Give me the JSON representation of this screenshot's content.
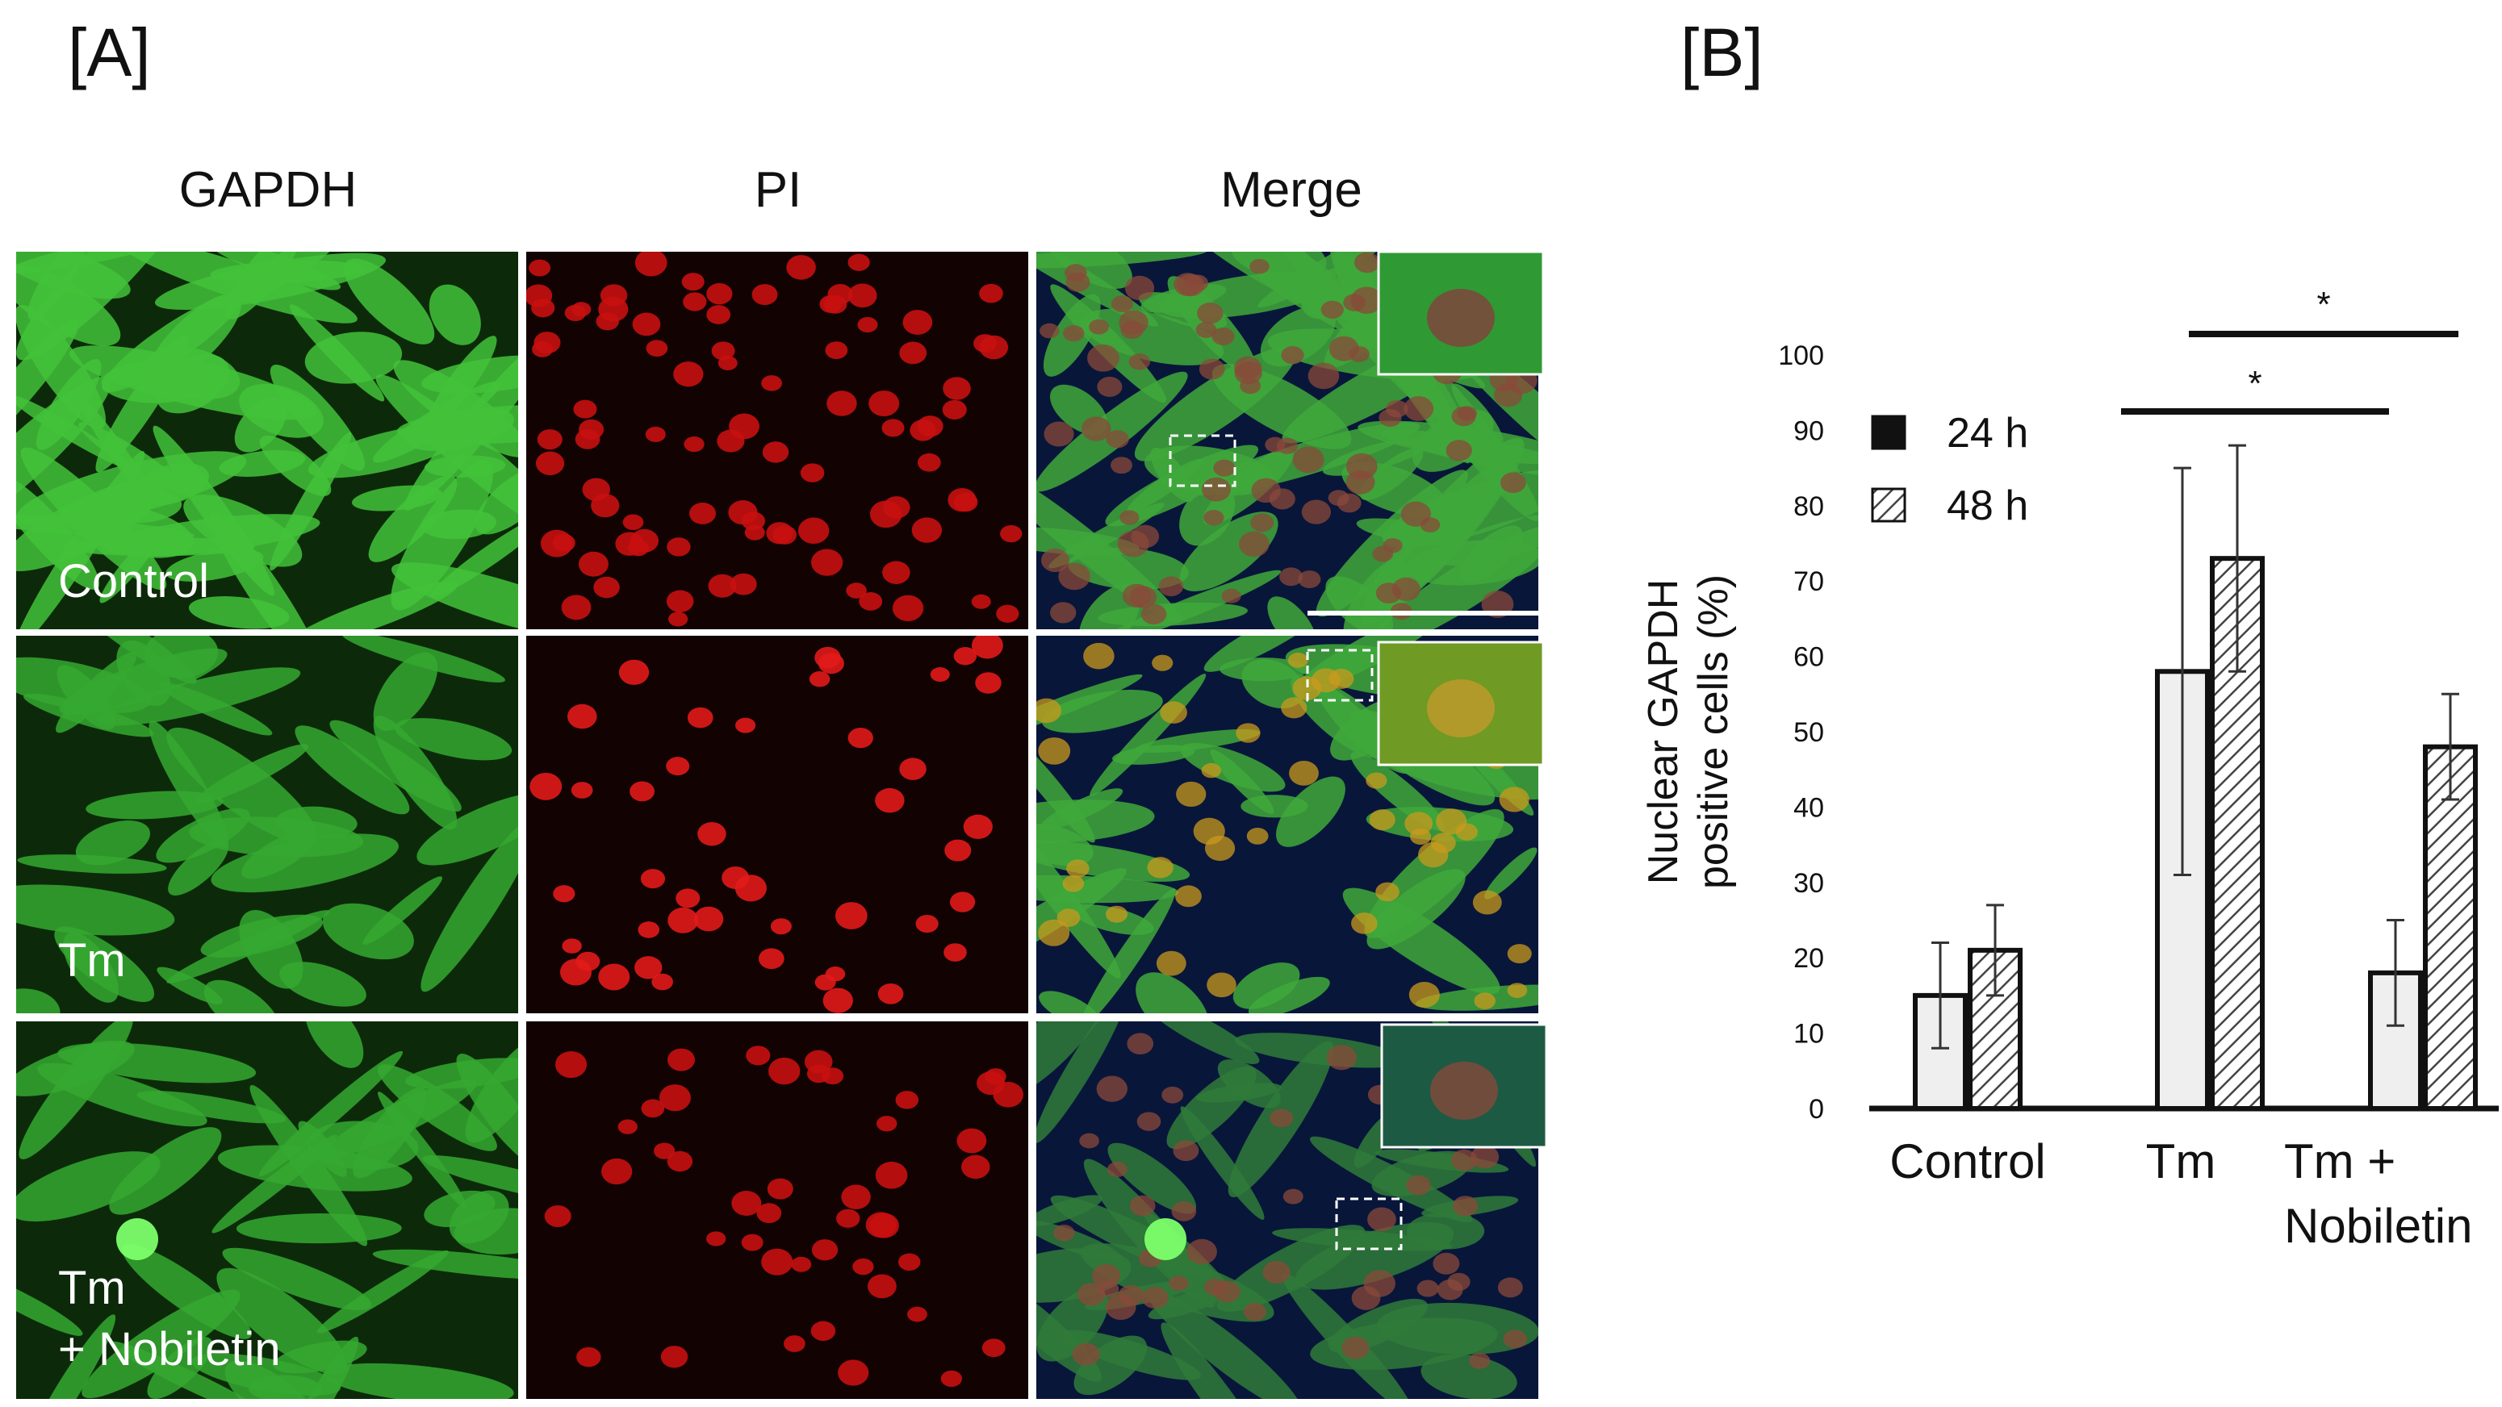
{
  "panels": {
    "a": {
      "label": "[A]"
    },
    "b": {
      "label": "[B]"
    }
  },
  "micrographs": {
    "columns": [
      "GAPDH",
      "PI",
      "Merge"
    ],
    "rows": [
      "Control",
      "Tm",
      "Tm",
      "+ Nobiletin"
    ],
    "colors": {
      "gapdh": "#2ea62a",
      "pi": "#c81010",
      "merge_bg": "#08163a",
      "merge_cell": "#3fa83b",
      "nucleus_overlap": "#c99a1e"
    }
  },
  "chart_data": {
    "type": "bar",
    "categories": [
      "Control",
      "Tm",
      "Tm +\nNobiletin"
    ],
    "category_lines": [
      [
        "Control"
      ],
      [
        "Tm"
      ],
      [
        "Tm +",
        "Nobiletin"
      ]
    ],
    "series": [
      {
        "name": "24 h",
        "values": [
          15,
          58,
          18
        ],
        "errors": [
          7,
          27,
          7
        ],
        "fill": "#efefef"
      },
      {
        "name": "48 h",
        "values": [
          21,
          73,
          48
        ],
        "errors": [
          6,
          15,
          7
        ],
        "fill": "hatch"
      }
    ],
    "ylabel_lines": [
      "Nuclear GAPDH",
      "positive cells (%)"
    ],
    "ylim": [
      0,
      100
    ],
    "yticks": [
      0,
      10,
      20,
      30,
      40,
      50,
      60,
      70,
      80,
      90,
      100
    ],
    "significance": [
      {
        "from": "Tm 24 h",
        "to": "Tm + Nobiletin 24 h",
        "label": "*"
      },
      {
        "from": "Tm 48 h",
        "to": "Tm + Nobiletin 48 h",
        "label": "*"
      }
    ],
    "legend_position": "top-left",
    "grid": false
  }
}
